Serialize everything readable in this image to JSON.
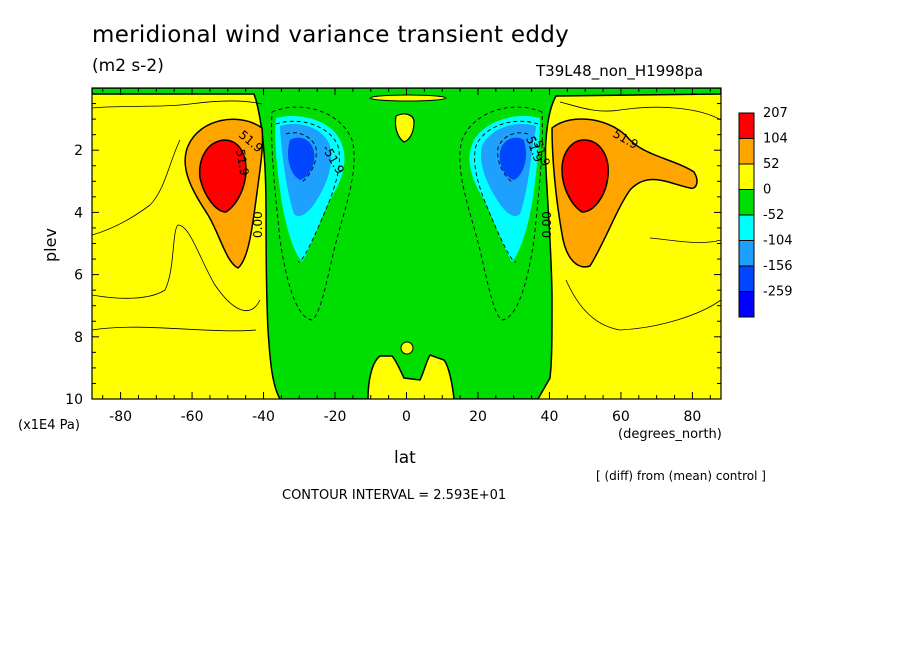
{
  "title": "meridional wind variance transient eddy",
  "units": "(m2 s-2)",
  "run_name": "T39L48_non_H1998pa",
  "diff_note": "[ (diff) from (mean) control ]",
  "contour_interval": "CONTOUR INTERVAL = 2.593E+01",
  "colors": {
    "red": "#ff0000",
    "orange": "#ffa500",
    "yellow": "#ffff00",
    "green": "#00dd00",
    "cyan": "#00ffff",
    "lightblue": "#1ea0ff",
    "blue": "#0046ff",
    "deepblue": "#0000ff"
  },
  "chart_data": {
    "type": "contour",
    "title": "meridional wind variance transient eddy",
    "units": "(m2 s-2)",
    "xlabel": "lat",
    "xunits": "(degrees_north)",
    "ylabel": "plev",
    "yunits": "(x1E4 Pa)",
    "xlim": [
      -88,
      88
    ],
    "ylim": [
      10,
      0
    ],
    "xticks": [
      -80,
      -60,
      -40,
      -20,
      0,
      20,
      40,
      60,
      80
    ],
    "yticks": [
      2,
      4,
      6,
      8,
      10
    ],
    "contour_interval": 25.93,
    "contour_labels": [
      "51.9",
      "51.9",
      "0.00",
      "-51.9",
      "-51.9",
      "51.9",
      "0.00",
      "51.9"
    ],
    "legend": {
      "placement": "right",
      "levels": [
        "207",
        "104",
        "52",
        "0",
        "-52",
        "-104",
        "-156",
        "-259"
      ],
      "colors": [
        "#ff0000",
        "#ffa500",
        "#ffff00",
        "#00dd00",
        "#00ffff",
        "#1ea0ff",
        "#0046ff",
        "#0000ff"
      ]
    },
    "features": [
      {
        "name": "positive max south",
        "lat": -49,
        "plev": 2.8,
        "value": 207
      },
      {
        "name": "negative min south",
        "lat": -30,
        "plev": 2.3,
        "value": -156
      },
      {
        "name": "negative min north",
        "lat": 30,
        "plev": 2.3,
        "value": -156
      },
      {
        "name": "positive max north",
        "lat": 48,
        "plev": 2.8,
        "value": 207
      }
    ]
  }
}
